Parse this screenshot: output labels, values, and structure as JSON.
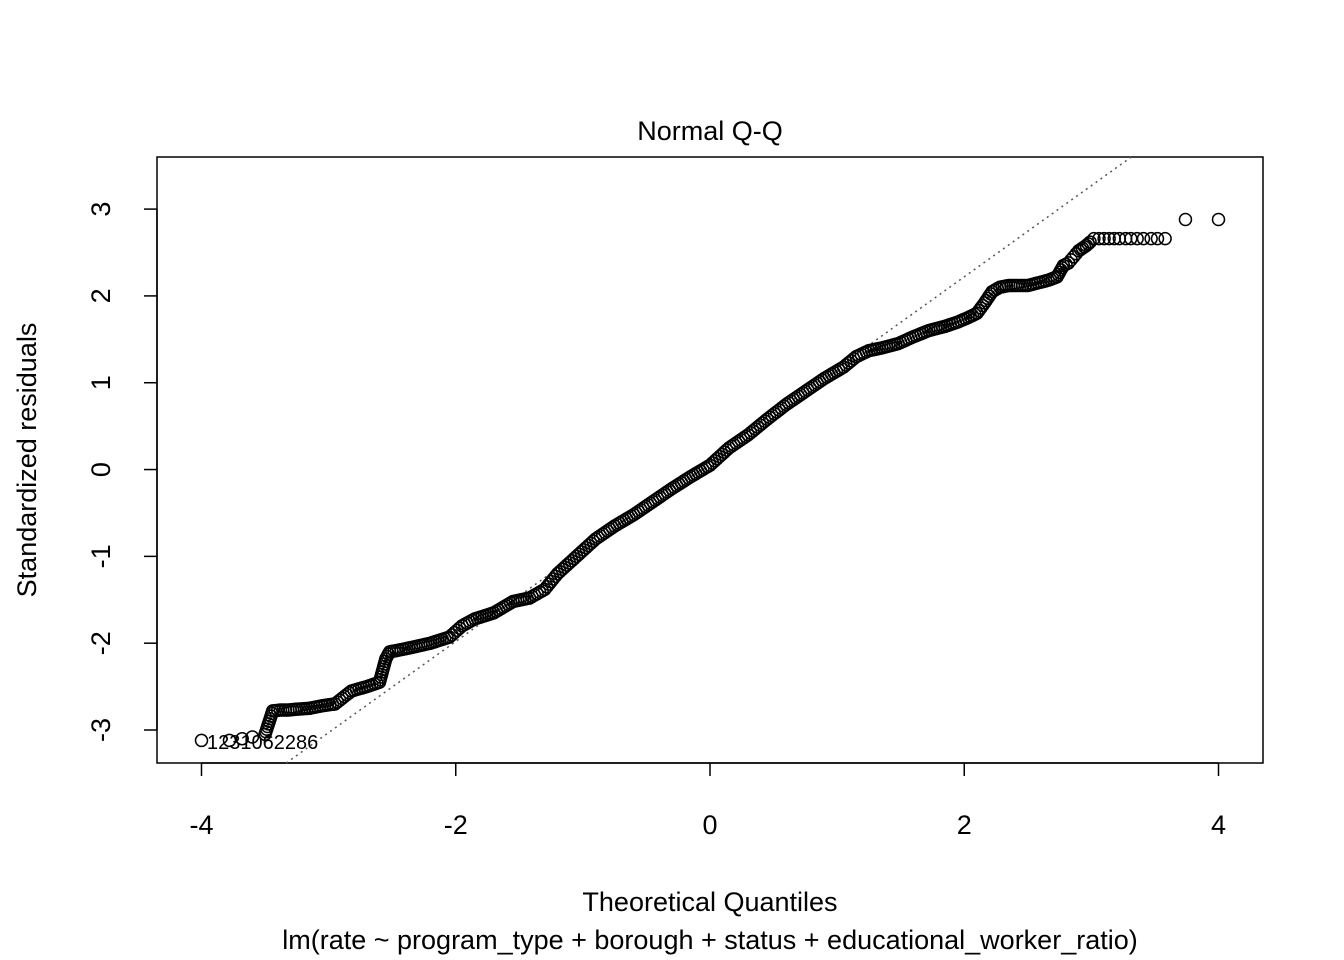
{
  "chart_data": {
    "type": "scatter",
    "title": "Normal Q-Q",
    "xlabel": "Theoretical Quantiles",
    "ylabel": "Standardized residuals",
    "subtitle": "lm(rate ~ program_type + borough + status + educational_worker_ratio)",
    "xlim": [
      -4.35,
      4.35
    ],
    "ylim": [
      -3.38,
      3.6
    ],
    "xticks": [
      "-4",
      "-2",
      "0",
      "2",
      "4"
    ],
    "yticks": [
      "-3",
      "-2",
      "-1",
      "0",
      "1",
      "2",
      "3"
    ],
    "reference_line": {
      "style": "dotted",
      "intercept": 0.12,
      "slope": 1.05
    },
    "outlier_labels": [
      "1231",
      "1062",
      "286"
    ],
    "outlier_label_text": "1231062286",
    "grid": false,
    "marker": "open-circle",
    "series": [
      {
        "points": [
          [
            4.0,
            2.88
          ],
          [
            3.74,
            2.88
          ],
          [
            3.58,
            2.66
          ],
          [
            3.52,
            2.66
          ],
          [
            3.47,
            2.66
          ],
          [
            3.41,
            2.66
          ],
          [
            3.36,
            2.66
          ],
          [
            3.31,
            2.66
          ],
          [
            3.27,
            2.66
          ],
          [
            3.22,
            2.66
          ],
          [
            3.18,
            2.66
          ],
          [
            3.14,
            2.66
          ],
          [
            3.1,
            2.66
          ],
          [
            3.06,
            2.66
          ],
          [
            3.02,
            2.66
          ],
          [
            2.99,
            2.62
          ],
          [
            2.96,
            2.58
          ],
          [
            2.93,
            2.55
          ],
          [
            2.9,
            2.52
          ],
          [
            2.86,
            2.45
          ],
          [
            2.82,
            2.38
          ],
          [
            2.78,
            2.35
          ],
          [
            2.73,
            2.22
          ],
          [
            2.66,
            2.18
          ],
          [
            2.58,
            2.15
          ],
          [
            2.5,
            2.12
          ],
          [
            2.42,
            2.12
          ],
          [
            2.35,
            2.12
          ],
          [
            2.28,
            2.1
          ],
          [
            2.22,
            2.05
          ],
          [
            2.16,
            1.92
          ],
          [
            2.1,
            1.8
          ],
          [
            2.03,
            1.75
          ],
          [
            1.95,
            1.7
          ],
          [
            1.85,
            1.65
          ],
          [
            1.72,
            1.6
          ],
          [
            1.6,
            1.53
          ],
          [
            1.48,
            1.45
          ],
          [
            1.35,
            1.4
          ],
          [
            1.25,
            1.37
          ],
          [
            1.15,
            1.3
          ],
          [
            1.05,
            1.18
          ],
          [
            0.9,
            1.05
          ],
          [
            0.75,
            0.9
          ],
          [
            0.6,
            0.75
          ],
          [
            0.45,
            0.58
          ],
          [
            0.3,
            0.4
          ],
          [
            0.15,
            0.25
          ],
          [
            0.0,
            0.05
          ],
          [
            -0.15,
            -0.08
          ],
          [
            -0.3,
            -0.22
          ],
          [
            -0.45,
            -0.37
          ],
          [
            -0.6,
            -0.52
          ],
          [
            -0.75,
            -0.65
          ],
          [
            -0.9,
            -0.8
          ],
          [
            -1.05,
            -1.0
          ],
          [
            -1.2,
            -1.2
          ],
          [
            -1.3,
            -1.38
          ],
          [
            -1.42,
            -1.48
          ],
          [
            -1.55,
            -1.52
          ],
          [
            -1.7,
            -1.65
          ],
          [
            -1.85,
            -1.72
          ],
          [
            -1.95,
            -1.8
          ],
          [
            -2.05,
            -1.93
          ],
          [
            -2.2,
            -2.0
          ],
          [
            -2.35,
            -2.05
          ],
          [
            -2.45,
            -2.08
          ],
          [
            -2.52,
            -2.1
          ],
          [
            -2.55,
            -2.18
          ],
          [
            -2.6,
            -2.45
          ],
          [
            -2.7,
            -2.5
          ],
          [
            -2.82,
            -2.55
          ],
          [
            -2.95,
            -2.7
          ],
          [
            -3.05,
            -2.72
          ],
          [
            -3.15,
            -2.75
          ],
          [
            -3.25,
            -2.76
          ],
          [
            -3.32,
            -2.77
          ],
          [
            -3.38,
            -2.77
          ],
          [
            -3.44,
            -2.78
          ],
          [
            -3.5,
            -3.05
          ],
          [
            -3.6,
            -3.08
          ],
          [
            -3.68,
            -3.1
          ],
          [
            -3.78,
            -3.12
          ],
          [
            -4.0,
            -3.12
          ]
        ]
      }
    ]
  }
}
